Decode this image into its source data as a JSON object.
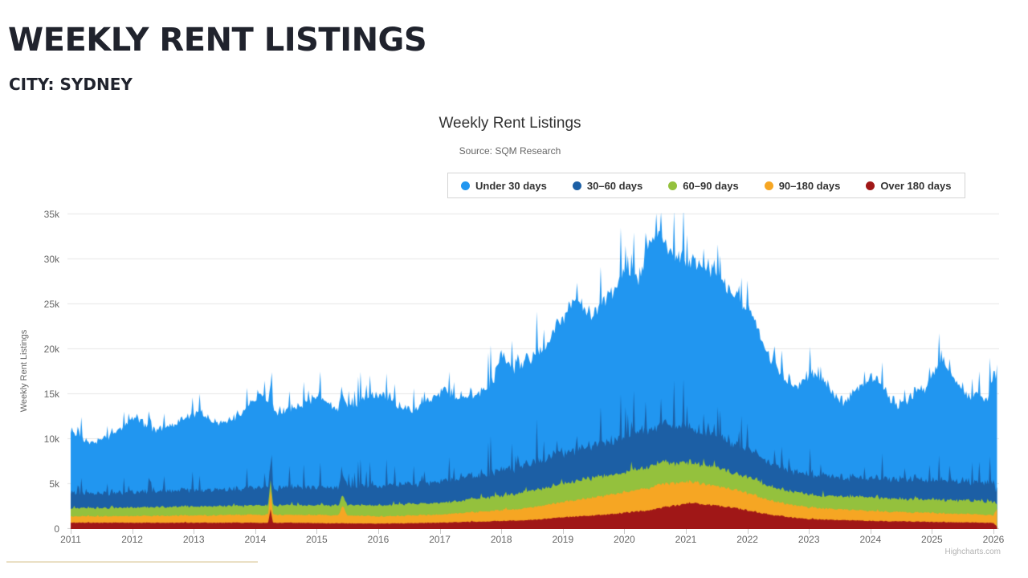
{
  "page": {
    "title": "WEEKLY RENT LISTINGS",
    "subtitle": "CITY: SYDNEY"
  },
  "chart": {
    "title": "Weekly Rent Listings",
    "subtitle": "Source: SQM Research",
    "y_axis_title": "Weekly Rent Listings",
    "credit": "Highcharts.com"
  },
  "chart_data": {
    "type": "area",
    "stacking": "normal",
    "title": "Weekly Rent Listings",
    "subtitle": "Source: SQM Research",
    "xlabel": "",
    "ylabel": "Weekly Rent Listings",
    "x_unit": "decimal_year",
    "values_unit": "thousands_of_listings",
    "x_range": [
      2011.0,
      2026.075
    ],
    "ylim": [
      0,
      35000
    ],
    "grid": "horizontal-only",
    "legend_position": "top",
    "y_ticks": [
      [
        0,
        "0"
      ],
      [
        5,
        "5k"
      ],
      [
        10,
        "10k"
      ],
      [
        15,
        "15k"
      ],
      [
        20,
        "20k"
      ],
      [
        25,
        "25k"
      ],
      [
        30,
        "30k"
      ],
      [
        35,
        "35k"
      ]
    ],
    "x_ticks": [
      [
        2011,
        "2011"
      ],
      [
        2012,
        "2012"
      ],
      [
        2013,
        "2013"
      ],
      [
        2014,
        "2014"
      ],
      [
        2015,
        "2015"
      ],
      [
        2016,
        "2016"
      ],
      [
        2017,
        "2017"
      ],
      [
        2018,
        "2018"
      ],
      [
        2019,
        "2019"
      ],
      [
        2020,
        "2020"
      ],
      [
        2021,
        "2021"
      ],
      [
        2022,
        "2022"
      ],
      [
        2023,
        "2023"
      ],
      [
        2024,
        "2024"
      ],
      [
        2025,
        "2025"
      ],
      [
        2026,
        "2026"
      ]
    ],
    "series": [
      {
        "name": "Under 30 days",
        "color": "#2196f0",
        "x": [
          2011.0,
          2011.15,
          2011.3,
          2011.45,
          2011.6,
          2011.75,
          2011.9,
          2012.05,
          2012.2,
          2012.35,
          2012.5,
          2012.65,
          2012.8,
          2012.95,
          2013.1,
          2013.25,
          2013.4,
          2013.55,
          2013.7,
          2013.85,
          2014.0,
          2014.1,
          2014.25,
          2014.4,
          2014.55,
          2014.7,
          2014.85,
          2015.0,
          2015.15,
          2015.3,
          2015.45,
          2015.6,
          2015.75,
          2015.9,
          2016.05,
          2016.2,
          2016.35,
          2016.5,
          2016.65,
          2016.8,
          2016.95,
          2017.1,
          2017.25,
          2017.4,
          2017.55,
          2017.7,
          2017.85,
          2018.0,
          2018.1,
          2018.25,
          2018.4,
          2018.55,
          2018.7,
          2018.85,
          2018.95,
          2019.1,
          2019.2,
          2019.35,
          2019.5,
          2019.65,
          2019.8,
          2019.95,
          2020.1,
          2020.25,
          2020.4,
          2020.5,
          2020.6,
          2020.75,
          2020.9,
          2021.05,
          2021.15,
          2021.3,
          2021.45,
          2021.6,
          2021.75,
          2021.9,
          2022.05,
          2022.2,
          2022.35,
          2022.5,
          2022.65,
          2022.8,
          2022.95,
          2023.1,
          2023.25,
          2023.4,
          2023.55,
          2023.7,
          2023.85,
          2024.0,
          2024.15,
          2024.3,
          2024.45,
          2024.6,
          2024.75,
          2024.9,
          2025.05,
          2025.15,
          2025.3,
          2025.45,
          2025.6,
          2025.75,
          2025.9,
          2026.0,
          2026.07
        ],
        "v": [
          6.9,
          6.3,
          5.6,
          5.8,
          6.3,
          7.0,
          7.5,
          8.5,
          7.5,
          6.8,
          7.0,
          7.4,
          7.7,
          8.3,
          8.9,
          7.9,
          7.4,
          7.6,
          8.2,
          8.9,
          9.7,
          10.4,
          9.1,
          8.5,
          8.6,
          9.0,
          9.6,
          10.3,
          9.5,
          8.9,
          8.7,
          9.1,
          9.5,
          9.9,
          10.3,
          9.4,
          8.7,
          8.2,
          8.6,
          9.1,
          9.6,
          10.1,
          9.3,
          8.7,
          8.9,
          9.3,
          9.9,
          13.1,
          11.7,
          11.1,
          11.6,
          11.9,
          12.4,
          13.3,
          14.3,
          16.0,
          16.8,
          15.3,
          14.6,
          15.6,
          16.7,
          18.1,
          18.2,
          16.6,
          20.4,
          21.8,
          20.4,
          19.2,
          18.8,
          18.3,
          19.1,
          17.8,
          18.3,
          17.4,
          16.7,
          15.8,
          15.2,
          13.5,
          11.9,
          10.8,
          9.8,
          9.3,
          10.7,
          11.4,
          10.3,
          9.2,
          8.4,
          9.3,
          10.3,
          11.2,
          10.6,
          9.2,
          8.2,
          8.9,
          9.7,
          10.3,
          12.1,
          13.7,
          11.5,
          10.8,
          9.2,
          10.2,
          8.9,
          12.1,
          13.1
        ]
      },
      {
        "name": "30–60 days",
        "color": "#1c5fa5",
        "x": [
          2011.0,
          2012.0,
          2013.0,
          2014.0,
          2015.0,
          2016.0,
          2017.0,
          2018.0,
          2018.5,
          2019.0,
          2019.5,
          2020.0,
          2020.5,
          2021.0,
          2021.5,
          2022.0,
          2022.5,
          2023.0,
          2024.0,
          2025.0,
          2025.9,
          2026.0,
          2026.07
        ],
        "v": [
          1.6,
          1.7,
          1.8,
          1.9,
          2.0,
          2.1,
          2.3,
          2.8,
          3.1,
          3.4,
          3.7,
          3.9,
          4.2,
          4.0,
          3.6,
          3.0,
          2.4,
          2.2,
          2.1,
          2.2,
          2.0,
          2.3,
          0.5
        ]
      },
      {
        "name": "60–90 days",
        "color": "#94c13d",
        "x": [
          2011.0,
          2012.0,
          2013.0,
          2014.0,
          2015.0,
          2016.0,
          2017.0,
          2018.0,
          2018.5,
          2019.0,
          2019.5,
          2020.0,
          2020.5,
          2021.0,
          2021.5,
          2022.0,
          2022.5,
          2023.0,
          2024.0,
          2025.0,
          2026.0,
          2026.07
        ],
        "v": [
          0.9,
          0.95,
          1.0,
          1.0,
          1.1,
          1.2,
          1.3,
          1.6,
          1.9,
          2.0,
          2.2,
          2.2,
          2.4,
          2.2,
          2.0,
          1.8,
          1.5,
          1.4,
          1.5,
          1.5,
          1.5,
          0.3
        ]
      },
      {
        "name": "90–180 days",
        "color": "#f6a623",
        "x": [
          2011.0,
          2012.0,
          2013.0,
          2014.1,
          2014.21,
          2014.25,
          2014.29,
          2014.5,
          2015.0,
          2015.35,
          2015.42,
          2015.5,
          2016.0,
          2017.0,
          2018.0,
          2018.5,
          2019.0,
          2019.5,
          2020.0,
          2020.5,
          2021.0,
          2021.5,
          2022.0,
          2022.5,
          2023.0,
          2024.0,
          2025.0,
          2025.9,
          2026.0,
          2026.07
        ],
        "v": [
          0.7,
          0.75,
          0.8,
          0.9,
          0.9,
          2.3,
          0.9,
          0.85,
          0.9,
          0.9,
          2.0,
          0.9,
          0.8,
          0.9,
          1.2,
          1.35,
          1.7,
          2.0,
          2.3,
          2.6,
          2.4,
          2.2,
          1.9,
          1.5,
          1.3,
          1.1,
          1.0,
          0.9,
          0.8,
          2.4
        ]
      },
      {
        "name": "Over 180 days",
        "color": "#a01717",
        "x": [
          2011.0,
          2012.0,
          2013.0,
          2014.1,
          2014.21,
          2014.25,
          2014.29,
          2014.5,
          2015.0,
          2016.0,
          2017.0,
          2018.0,
          2018.5,
          2019.0,
          2019.5,
          2020.0,
          2020.3,
          2020.8,
          2021.1,
          2021.5,
          2021.9,
          2022.3,
          2022.7,
          2023.0,
          2024.0,
          2025.0,
          2025.9,
          2026.0,
          2026.07
        ],
        "v": [
          0.7,
          0.7,
          0.7,
          0.7,
          0.7,
          2.2,
          0.7,
          0.7,
          0.65,
          0.6,
          0.7,
          0.9,
          1.0,
          1.3,
          1.5,
          1.8,
          2.0,
          2.6,
          2.9,
          2.6,
          2.2,
          1.7,
          1.3,
          1.1,
          0.9,
          0.8,
          0.7,
          0.7,
          0.15
        ]
      }
    ]
  }
}
